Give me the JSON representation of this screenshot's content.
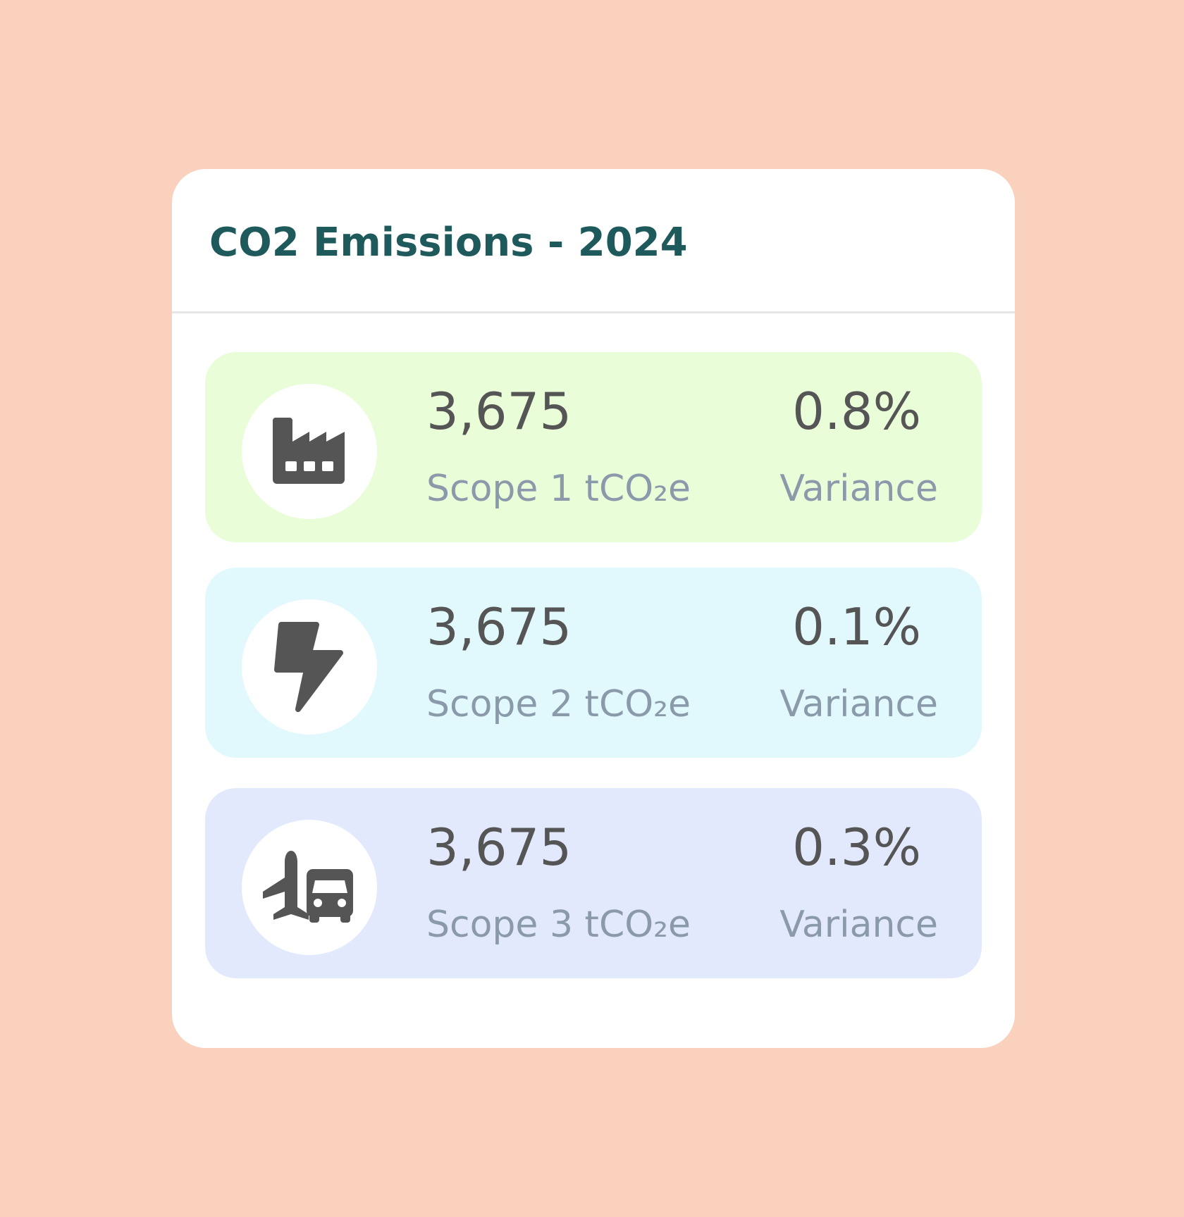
{
  "card": {
    "title": "CO2 Emissions - 2024"
  },
  "rows": [
    {
      "icon": "factory-icon",
      "bg_color": "#eafdd9",
      "value": "3,675",
      "label": "Scope 1 tCO₂e",
      "variance_value": "0.8%",
      "variance_label": "Variance"
    },
    {
      "icon": "lightning-icon",
      "bg_color": "#e1f9fc",
      "value": "3,675",
      "label": "Scope 2 tCO₂e",
      "variance_value": "0.1%",
      "variance_label": "Variance"
    },
    {
      "icon": "plane-truck-icon",
      "bg_color": "#e3e9fc",
      "value": "3,675",
      "label": "Scope 3 tCO₂e",
      "variance_value": "0.3%",
      "variance_label": "Variance"
    }
  ],
  "colors": {
    "page_background": "#f9d1bc",
    "card_background": "#ffffff",
    "title": "#1e5a5c",
    "value_text": "#555555",
    "label_text": "#8a9aaa",
    "icon": "#555555"
  }
}
